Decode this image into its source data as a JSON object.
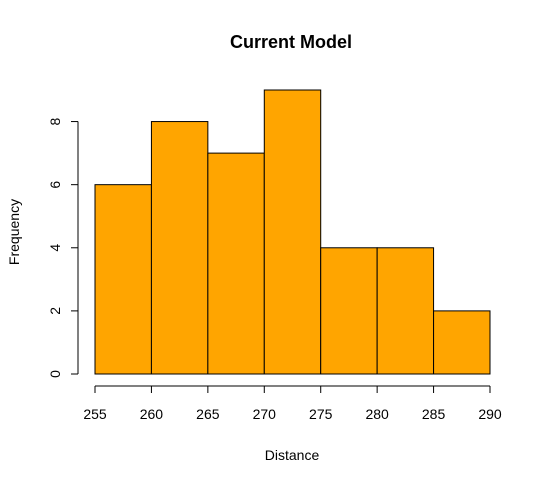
{
  "chart_data": {
    "type": "bar",
    "subtype": "histogram",
    "title": "Current Model",
    "xlabel": "Distance",
    "ylabel": "Frequency",
    "bin_edges": [
      255,
      260,
      265,
      270,
      275,
      280,
      285,
      290
    ],
    "values": [
      6,
      8,
      7,
      9,
      4,
      4,
      2
    ],
    "xlim": [
      255,
      290
    ],
    "ylim": [
      0,
      9
    ],
    "x_ticks": [
      "255",
      "260",
      "265",
      "270",
      "275",
      "280",
      "285",
      "290"
    ],
    "y_ticks": [
      "0",
      "2",
      "4",
      "6",
      "8"
    ],
    "bar_color": "#FFA500",
    "bar_border_color": "#000000",
    "grid": false
  }
}
